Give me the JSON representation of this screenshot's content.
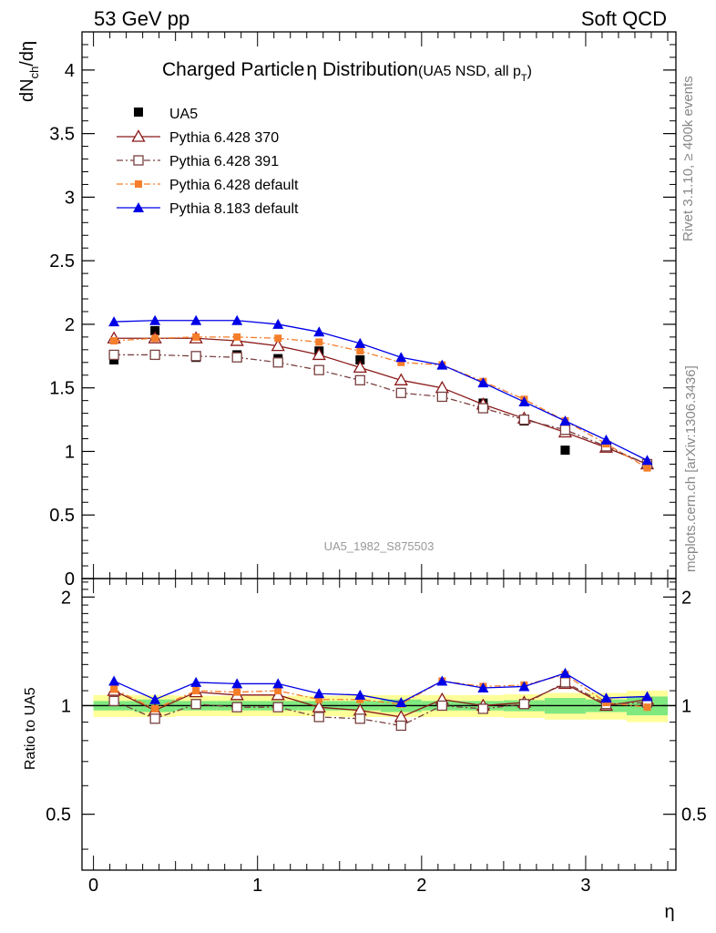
{
  "header": {
    "energy_label": "53 GeV pp",
    "process_label": "Soft QCD",
    "rivet_label": "Rivet 3.1.10, ≥ 400k events",
    "source_label": "mcplots.cern.ch [arXiv:1306.3436]",
    "analysis_label": "UA5_1982_S875503"
  },
  "chart_data": [
    {
      "type": "scatter",
      "title": "Charged Particle",
      "title_symbol": "η",
      "title_rest": " Distribution",
      "subtitle_main": "(UA5 NSD, all p",
      "subtitle_sub": "T",
      "subtitle_end": ")",
      "ylabel_main": "dN",
      "ylabel_sub": "ch",
      "ylabel_end": "/dη",
      "xlim": [
        -0.07,
        3.55
      ],
      "ylim": [
        0,
        4.3
      ],
      "yticks": [
        0,
        0.5,
        1,
        1.5,
        2,
        2.5,
        3,
        3.5,
        4
      ],
      "ytick_labels": [
        "0",
        "0.5",
        "1",
        "1.5",
        "2",
        "2.5",
        "3",
        "3.5",
        "4"
      ],
      "x": [
        0.125,
        0.375,
        0.625,
        0.875,
        1.125,
        1.375,
        1.625,
        1.875,
        2.125,
        2.375,
        2.625,
        2.875,
        3.125,
        3.375
      ],
      "series": [
        {
          "name": "UA5",
          "color": "#000000",
          "marker": "square-filled",
          "line": "none",
          "values": [
            1.72,
            1.95,
            1.74,
            1.76,
            1.73,
            1.79,
            1.72,
            null,
            1.44,
            1.38,
            1.24,
            1.01,
            null,
            null
          ]
        },
        {
          "name": "Pythia 6.428 370",
          "color": "#8b1a1a",
          "marker": "triangle-open",
          "line": "solid",
          "values": [
            1.89,
            1.89,
            1.89,
            1.87,
            1.83,
            1.76,
            1.66,
            1.56,
            1.5,
            1.37,
            1.26,
            1.15,
            1.03,
            0.9
          ]
        },
        {
          "name": "Pythia 6.428 391",
          "color": "#7a4040",
          "marker": "square-open",
          "line": "dashdot",
          "values": [
            1.76,
            1.76,
            1.75,
            1.74,
            1.7,
            1.64,
            1.56,
            1.46,
            1.43,
            1.34,
            1.25,
            1.17,
            1.04,
            0.9
          ]
        },
        {
          "name": "Pythia 6.428 default",
          "color": "#f57e2a",
          "marker": "square-filled",
          "line": "dashdot",
          "values": [
            1.87,
            1.89,
            1.9,
            1.9,
            1.89,
            1.86,
            1.79,
            1.7,
            1.68,
            1.55,
            1.41,
            1.24,
            1.06,
            0.87
          ]
        },
        {
          "name": "Pythia 8.183 default",
          "color": "#0000e6",
          "marker": "triangle-filled",
          "line": "solid",
          "values": [
            2.02,
            2.03,
            2.03,
            2.03,
            2.0,
            1.94,
            1.85,
            1.74,
            1.68,
            1.54,
            1.39,
            1.24,
            1.09,
            0.93
          ]
        }
      ]
    },
    {
      "type": "scatter",
      "ylabel": "Ratio to UA5",
      "xlabel": "η",
      "xlim": [
        -0.07,
        3.55
      ],
      "ylim": [
        0.35,
        2.25
      ],
      "yticks": [
        0.5,
        1,
        2
      ],
      "ytick_labels": [
        "0.5",
        "1",
        "2"
      ],
      "xticks": [
        0,
        1,
        2,
        3
      ],
      "xtick_labels": [
        "0",
        "1",
        "2",
        "3"
      ],
      "x": [
        0.125,
        0.375,
        0.625,
        0.875,
        1.125,
        1.375,
        1.625,
        1.875,
        2.125,
        2.375,
        2.625,
        2.875,
        3.125,
        3.375
      ],
      "bands": {
        "x_edges": [
          0,
          0.25,
          0.5,
          0.75,
          1.0,
          1.25,
          1.5,
          1.75,
          2.0,
          2.25,
          2.5,
          2.75,
          3.0,
          3.25,
          3.5
        ],
        "inner_halfwidth": [
          0.03,
          0.04,
          0.03,
          0.03,
          0.03,
          0.03,
          0.03,
          0.04,
          0.03,
          0.03,
          0.035,
          0.05,
          0.04,
          0.06
        ],
        "outer_halfwidth": [
          0.07,
          0.07,
          0.065,
          0.065,
          0.065,
          0.065,
          0.07,
          0.07,
          0.07,
          0.07,
          0.075,
          0.085,
          0.085,
          0.1
        ],
        "inner_color": "#7fe87f",
        "outer_color": "#ffff99"
      },
      "series": [
        {
          "name": "Pythia 6.428 370",
          "color": "#8b1a1a",
          "marker": "triangle-open",
          "line": "solid",
          "values": [
            1.1,
            0.97,
            1.09,
            1.07,
            1.07,
            0.99,
            0.97,
            0.93,
            1.04,
            1.0,
            1.02,
            1.15,
            1.0,
            1.04
          ]
        },
        {
          "name": "Pythia 6.428 391",
          "color": "#7a4040",
          "marker": "square-open",
          "line": "dashdot",
          "values": [
            1.03,
            0.92,
            1.01,
            0.99,
            0.99,
            0.93,
            0.92,
            0.88,
            1.0,
            0.98,
            1.01,
            1.16,
            1.01,
            1.02
          ]
        },
        {
          "name": "Pythia 6.428 default",
          "color": "#f57e2a",
          "marker": "square-filled",
          "line": "dashdot",
          "values": [
            1.11,
            0.98,
            1.1,
            1.09,
            1.1,
            1.04,
            1.04,
            1.01,
            1.17,
            1.13,
            1.14,
            1.22,
            1.02,
            0.99
          ]
        },
        {
          "name": "Pythia 8.183 default",
          "color": "#0000e6",
          "marker": "triangle-filled",
          "line": "solid",
          "values": [
            1.17,
            1.04,
            1.16,
            1.15,
            1.15,
            1.08,
            1.07,
            1.02,
            1.17,
            1.12,
            1.13,
            1.23,
            1.05,
            1.06
          ]
        }
      ]
    }
  ]
}
